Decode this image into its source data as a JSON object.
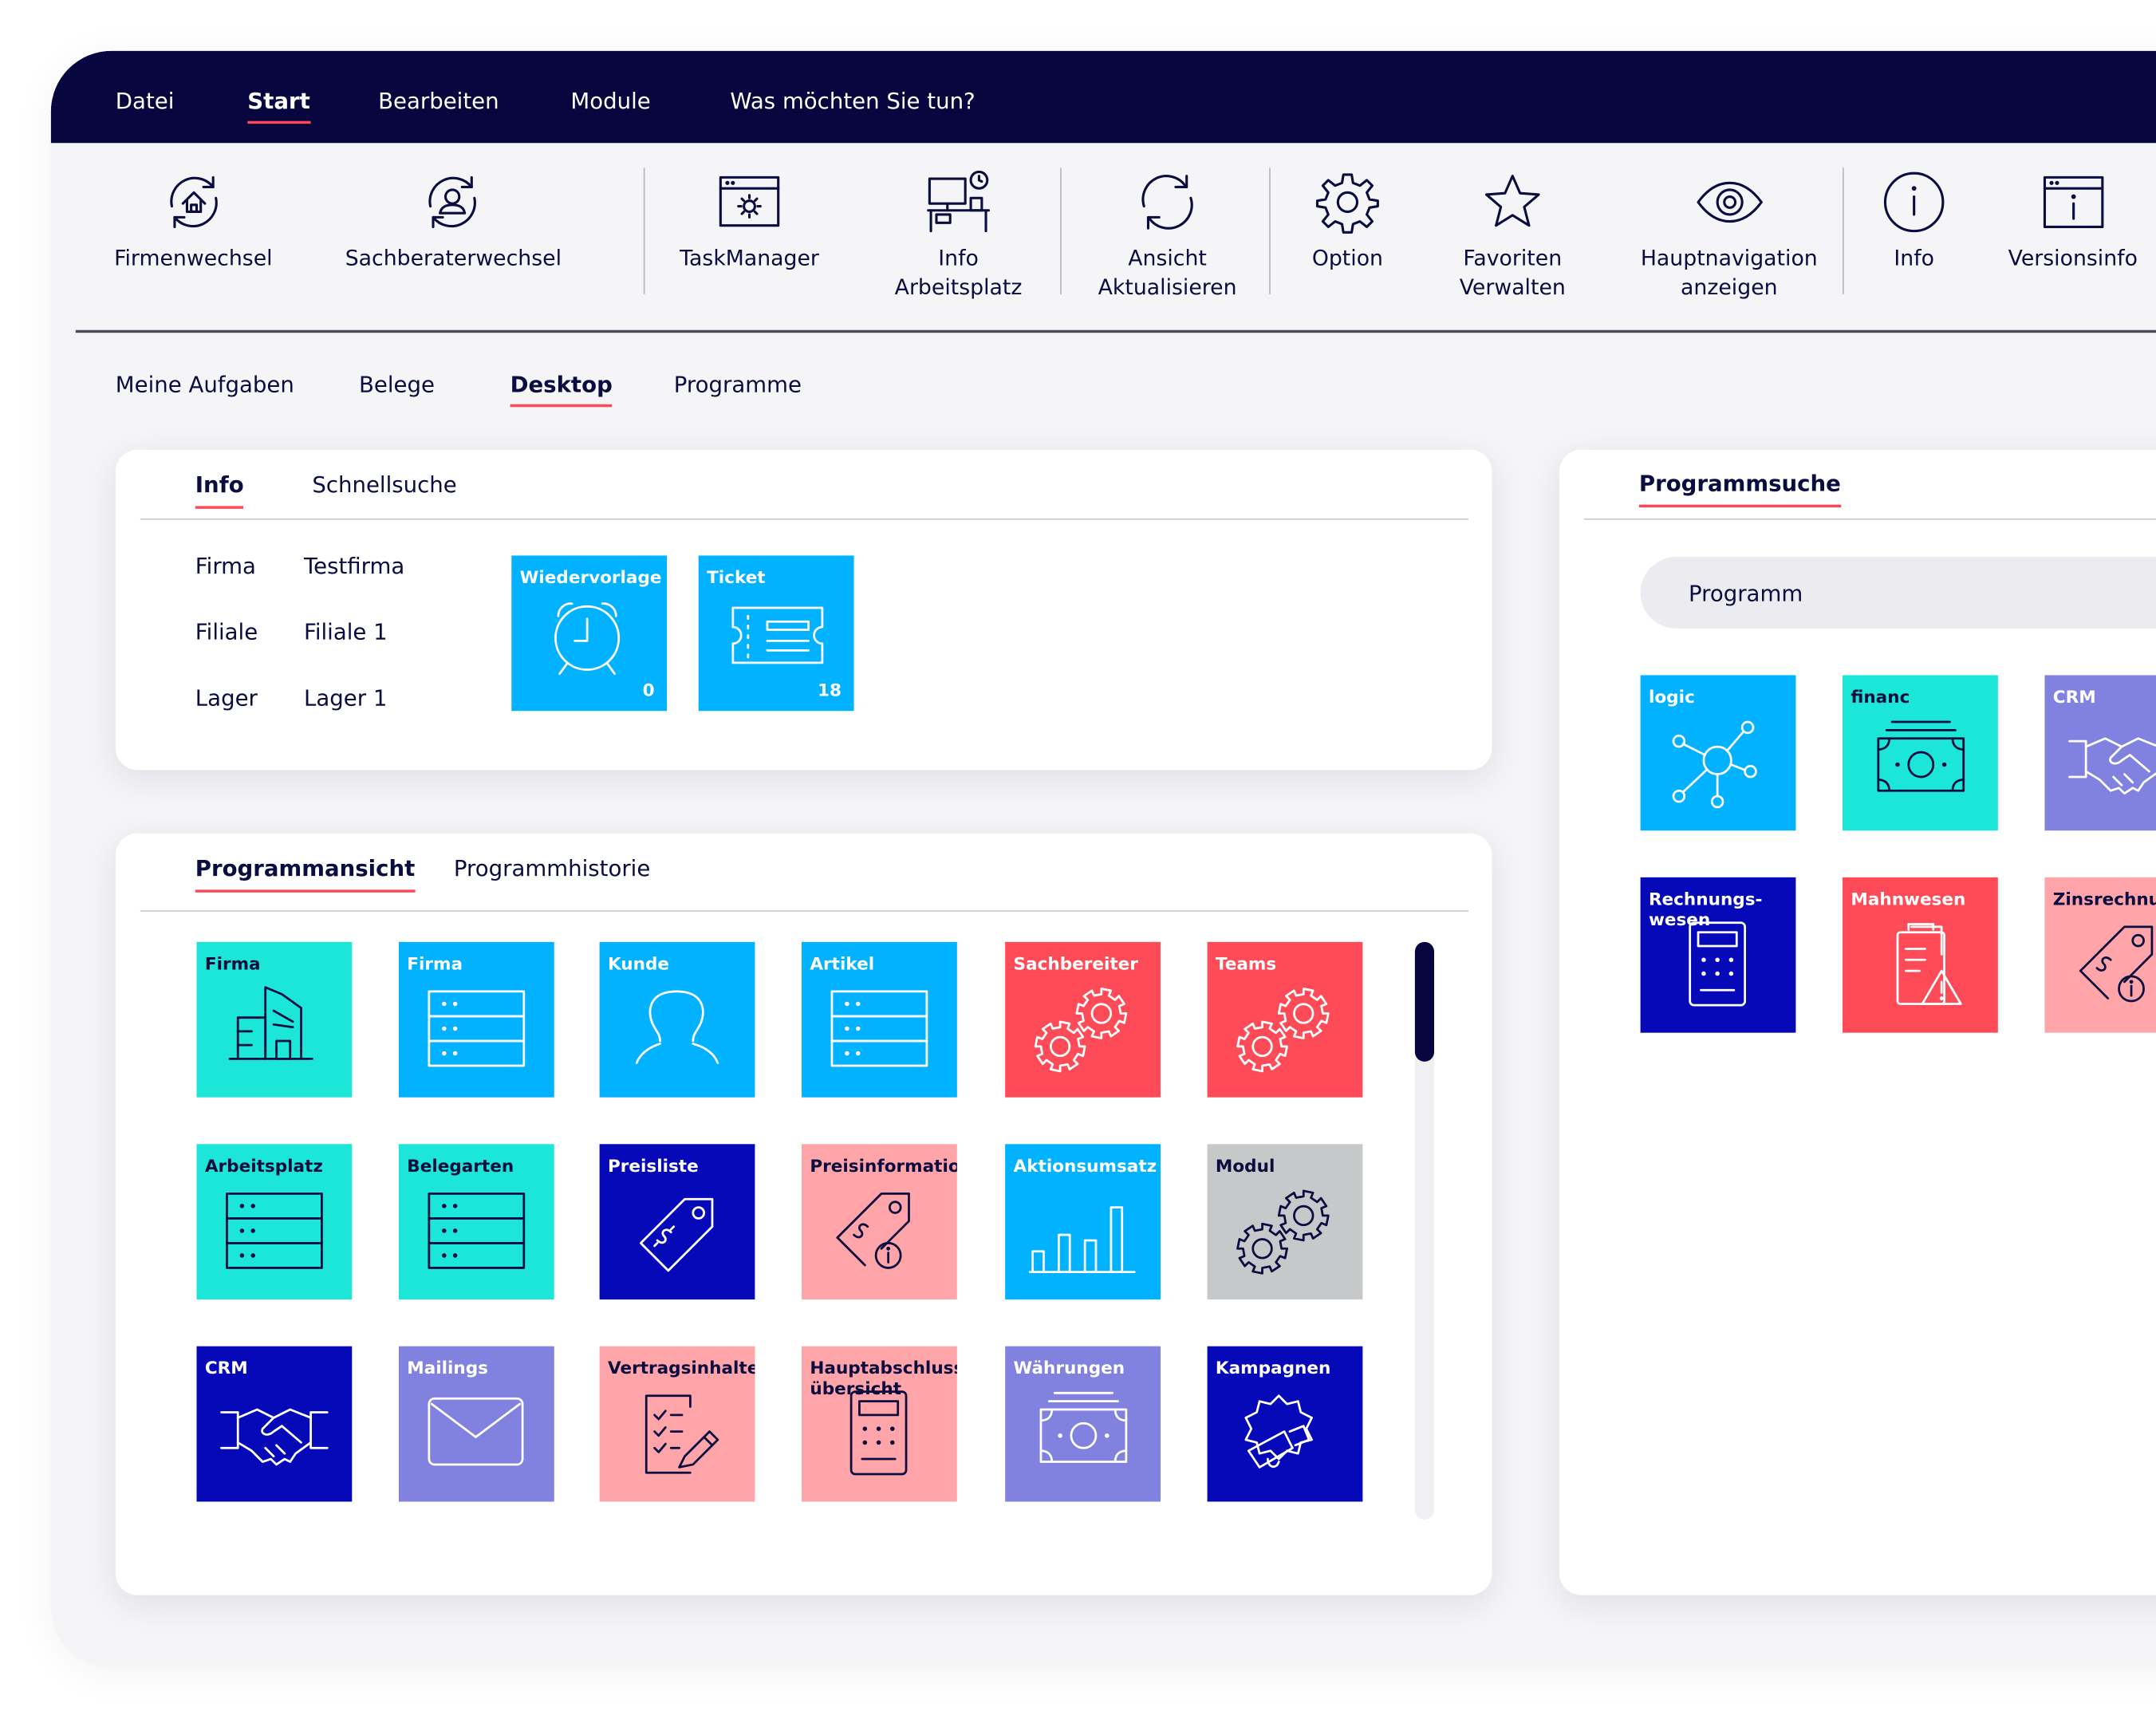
{
  "menu": {
    "items": [
      "Datei",
      "Start",
      "Bearbeiten",
      "Module",
      "Was möchten Sie tun?"
    ]
  },
  "toolbar": {
    "items": [
      {
        "label": "Firmenwechsel",
        "icon": "company-switch-icon"
      },
      {
        "label": "Sachberaterwechsel",
        "icon": "user-switch-icon"
      },
      {
        "label": "TaskManager",
        "icon": "task-manager-icon"
      },
      {
        "label": "Info\nArbeitsplatz",
        "icon": "workplace-icon"
      },
      {
        "label": "Ansicht\nAktualisieren",
        "icon": "refresh-icon"
      },
      {
        "label": "Option",
        "icon": "gear-icon"
      },
      {
        "label": "Favoriten\nVerwalten",
        "icon": "star-icon"
      },
      {
        "label": "Hauptnavigation\nanzeigen",
        "icon": "eye-icon"
      },
      {
        "label": "Info",
        "icon": "info-icon"
      },
      {
        "label": "Versionsinfo",
        "icon": "version-info-icon"
      }
    ]
  },
  "subtabs": [
    "Meine Aufgaben",
    "Belege",
    "Desktop",
    "Programme"
  ],
  "info_card": {
    "tabs": [
      "Info",
      "Schnellsuche"
    ],
    "rows": [
      {
        "label": "Firma",
        "value": "Testfirma"
      },
      {
        "label": "Filiale",
        "value": "Filiale 1"
      },
      {
        "label": "Lager",
        "value": "Lager 1"
      }
    ],
    "tiles": [
      {
        "label": "Wiedervorlage",
        "count": "0",
        "icon": "alarm-clock-icon",
        "color": "#00b2ff"
      },
      {
        "label": "Ticket",
        "count": "18",
        "icon": "ticket-icon",
        "color": "#00b2ff"
      }
    ]
  },
  "program_card": {
    "tabs": [
      "Programmansicht",
      "Programmhistorie"
    ],
    "tiles": [
      {
        "label": "Firma",
        "icon": "building-icon",
        "color": "#1be6d7"
      },
      {
        "label": "Firma",
        "icon": "server-icon",
        "color": "#00b2ff"
      },
      {
        "label": "Kunde",
        "icon": "person-icon",
        "color": "#00b2ff"
      },
      {
        "label": "Artikel",
        "icon": "server-icon",
        "color": "#00b2ff"
      },
      {
        "label": "Sachbereiter",
        "icon": "gears-icon",
        "color": "#ff4a57"
      },
      {
        "label": "Teams",
        "icon": "gears-icon",
        "color": "#ff4a57"
      },
      {
        "label": "Arbeitsplatz",
        "icon": "server-icon",
        "color": "#1be6d7"
      },
      {
        "label": "Belegarten",
        "icon": "server-icon",
        "color": "#1be6d7"
      },
      {
        "label": "Preisliste",
        "icon": "price-tag-icon",
        "color": "#0509b8"
      },
      {
        "label": "Preisinformation",
        "icon": "price-tag-info-icon",
        "color": "#ffa5aa"
      },
      {
        "label": "Aktionsumsatz",
        "icon": "bar-chart-icon",
        "color": "#00b2ff"
      },
      {
        "label": "Modul",
        "icon": "gears-icon",
        "color": "#c7c8ca"
      },
      {
        "label": "CRM",
        "icon": "handshake-icon",
        "color": "#0509b8"
      },
      {
        "label": "Mailings",
        "icon": "envelope-icon",
        "color": "#8181e0"
      },
      {
        "label": "Vertragsinhalte",
        "icon": "checklist-icon",
        "color": "#ffa5aa"
      },
      {
        "label": "Hauptabschluss\nübersicht",
        "icon": "calculator-icon",
        "color": "#ffa5aa"
      },
      {
        "label": "Währungen",
        "icon": "money-icon",
        "color": "#8181e0"
      },
      {
        "label": "Kampagnen",
        "icon": "megaphone-icon",
        "color": "#0509b8"
      }
    ]
  },
  "search_card": {
    "title": "Programmsuche",
    "search_placeholder": "Programm",
    "tiles": [
      {
        "label": "logic",
        "icon": "network-icon",
        "color": "#00b2ff"
      },
      {
        "label": "financ",
        "icon": "money-icon",
        "color": "#1be6d7"
      },
      {
        "label": "CRM",
        "icon": "handshake-icon",
        "color": "#8181e0"
      },
      {
        "label": "Rechnungs-\nwesen",
        "icon": "calculator-icon",
        "color": "#0509b8"
      },
      {
        "label": "Mahnwesen",
        "icon": "clipboard-warning-icon",
        "color": "#ff4a57"
      },
      {
        "label": "Zinsrechnung",
        "icon": "price-tag-info-icon",
        "color": "#ffa5aa"
      }
    ]
  }
}
